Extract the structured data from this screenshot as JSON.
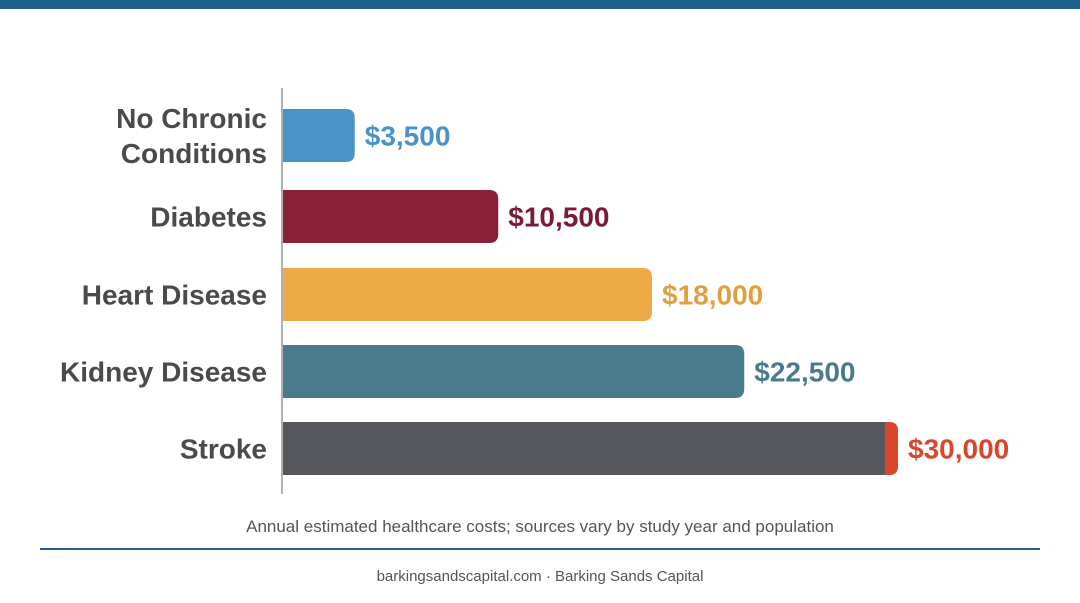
{
  "colors": {
    "top_bar": "#1e5f8c",
    "divider": "#1e5f8c",
    "axis": "#b0b0b0",
    "category_label": "#4a4a4a",
    "stroke_accent": "#d9472b"
  },
  "chart_data": {
    "type": "bar",
    "orientation": "horizontal",
    "categories": [
      "No Chronic Conditions",
      "Diabetes",
      "Heart Disease",
      "Kidney Disease",
      "Stroke"
    ],
    "category_lines": [
      [
        "No Chronic",
        "Conditions"
      ],
      [
        "Diabetes"
      ],
      [
        "Heart Disease"
      ],
      [
        "Kidney Disease"
      ],
      [
        "Stroke"
      ]
    ],
    "values": [
      3500,
      10500,
      18000,
      22500,
      30000
    ],
    "value_labels": [
      "$3,500",
      "$10,500",
      "$18,000",
      "$22,500",
      "$30,000"
    ],
    "bar_colors": [
      "#4a93c9",
      "#8a2038",
      "#eeaa44",
      "#4a7b8c",
      "#55575d"
    ],
    "label_colors": [
      "#4a93c9",
      "#7a1c33",
      "#e0a040",
      "#4a7b8c",
      "#d9472b"
    ],
    "xlim": [
      0,
      30000
    ],
    "grid": false,
    "legend": "none",
    "title": "",
    "xlabel": "",
    "ylabel": ""
  },
  "caption": "Annual estimated healthcare costs; sources vary by study year and population",
  "footer": "barkingsandscapital.com · Barking Sands Capital"
}
